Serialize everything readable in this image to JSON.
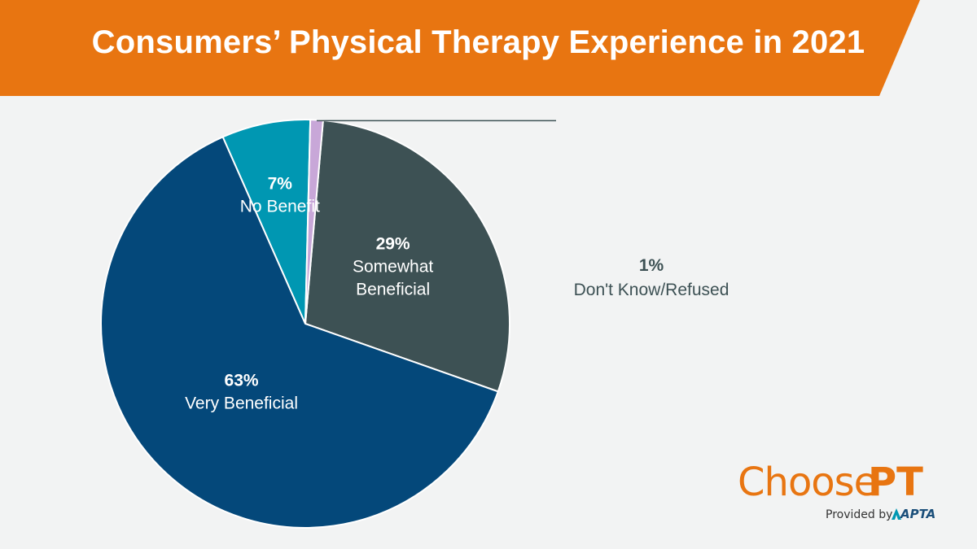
{
  "header": {
    "title": "Consumers’ Physical Therapy Experience in 2021"
  },
  "colors": {
    "banner": "#e87511",
    "background": "#f2f3f3"
  },
  "chart_data": {
    "type": "pie",
    "title": "Consumers’ Physical Therapy Experience in 2021",
    "slices": [
      {
        "label": "Very Beneficial",
        "value": 63,
        "pct_label": "63%",
        "color": "#04487a",
        "label_color": "#ffffff"
      },
      {
        "label": "No Benefit",
        "value": 7,
        "pct_label": "7%",
        "color": "#0097b2",
        "label_color": "#ffffff"
      },
      {
        "label": "Don't Know/Refused",
        "value": 1,
        "pct_label": "1%",
        "color": "#c8a7d8",
        "label_color": "#3d5154"
      },
      {
        "label": "Somewhat Beneficial",
        "value": 29,
        "pct_label": "29%",
        "color": "#3d5154",
        "label_color": "#ffffff"
      }
    ]
  },
  "logo": {
    "choose": "Choose",
    "pt": "PT",
    "provided_by": "Provided by",
    "apta": "APTA"
  }
}
